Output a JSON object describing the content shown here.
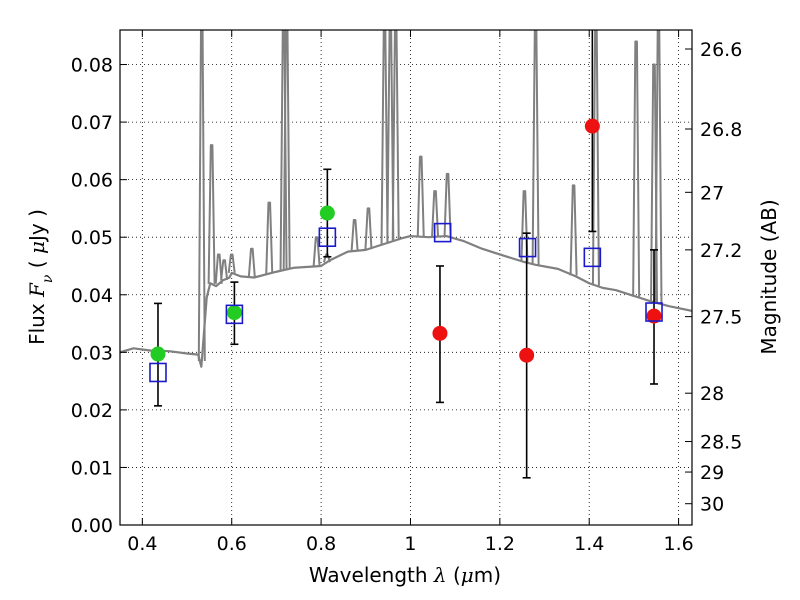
{
  "chart_data": {
    "type": "scatter",
    "xlabel": "Wavelength  λ (μm)",
    "ylabel": "Flux  F_ν  ( μJy )",
    "ylabel_parts": {
      "prefix": "Flux  ",
      "symbol": "F",
      "subscript": "ν",
      "unit_open": "  ( ",
      "unit_mu": "μ",
      "unit_rest": "Jy )"
    },
    "xlabel_parts": {
      "prefix": "Wavelength  ",
      "symbol": "λ",
      "unit_open": " (",
      "unit_mu": "μ",
      "unit_rest": "m)"
    },
    "y2label": "Magnitude (AB)",
    "xlim": [
      0.35,
      1.63
    ],
    "ylim": [
      0.0,
      0.086
    ],
    "grid": true,
    "x_ticks": [
      {
        "value": 0.4,
        "label": "0.4"
      },
      {
        "value": 0.6,
        "label": "0.6"
      },
      {
        "value": 0.8,
        "label": "0.8"
      },
      {
        "value": 1.0,
        "label": "1"
      },
      {
        "value": 1.2,
        "label": "1.2"
      },
      {
        "value": 1.4,
        "label": "1.4"
      },
      {
        "value": 1.6,
        "label": "1.6"
      }
    ],
    "y_ticks": [
      {
        "value": 0.0,
        "label": "0.00"
      },
      {
        "value": 0.01,
        "label": "0.01"
      },
      {
        "value": 0.02,
        "label": "0.02"
      },
      {
        "value": 0.03,
        "label": "0.03"
      },
      {
        "value": 0.04,
        "label": "0.04"
      },
      {
        "value": 0.05,
        "label": "0.05"
      },
      {
        "value": 0.06,
        "label": "0.06"
      },
      {
        "value": 0.07,
        "label": "0.07"
      },
      {
        "value": 0.08,
        "label": "0.08"
      }
    ],
    "y2_ticks": [
      {
        "flux": 0.0827,
        "label": "26.6"
      },
      {
        "flux": 0.0688,
        "label": "26.8"
      },
      {
        "flux": 0.0578,
        "label": "27"
      },
      {
        "flux": 0.0478,
        "label": "27.2"
      },
      {
        "flux": 0.0362,
        "label": "27.5"
      },
      {
        "flux": 0.0229,
        "label": "28"
      },
      {
        "flux": 0.0145,
        "label": "28.5"
      },
      {
        "flux": 0.0092,
        "label": "29"
      },
      {
        "flux": 0.0037,
        "label": "30"
      }
    ],
    "model_spectrum": {
      "color": "#808080",
      "points": [
        [
          0.35,
          0.03
        ],
        [
          0.38,
          0.0307
        ],
        [
          0.42,
          0.0303
        ],
        [
          0.46,
          0.0302
        ],
        [
          0.5,
          0.0298
        ],
        [
          0.525,
          0.0296
        ],
        [
          0.532,
          0.0275
        ],
        [
          0.538,
          0.0335
        ],
        [
          0.544,
          0.0395
        ],
        [
          0.552,
          0.042
        ],
        [
          0.565,
          0.0415
        ],
        [
          0.58,
          0.0425
        ],
        [
          0.595,
          0.043
        ],
        [
          0.6,
          0.0438
        ],
        [
          0.62,
          0.0432
        ],
        [
          0.65,
          0.043
        ],
        [
          0.7,
          0.044
        ],
        [
          0.74,
          0.0447
        ],
        [
          0.8,
          0.045
        ],
        [
          0.82,
          0.046
        ],
        [
          0.86,
          0.0475
        ],
        [
          0.9,
          0.0478
        ],
        [
          0.94,
          0.0488
        ],
        [
          0.98,
          0.0498
        ],
        [
          1.0,
          0.0502
        ],
        [
          1.04,
          0.05
        ],
        [
          1.08,
          0.0502
        ],
        [
          1.12,
          0.0493
        ],
        [
          1.16,
          0.048
        ],
        [
          1.2,
          0.047
        ],
        [
          1.25,
          0.0458
        ],
        [
          1.28,
          0.0452
        ],
        [
          1.33,
          0.0445
        ],
        [
          1.37,
          0.0432
        ],
        [
          1.4,
          0.042
        ],
        [
          1.43,
          0.0412
        ],
        [
          1.46,
          0.0408
        ],
        [
          1.5,
          0.0398
        ],
        [
          1.54,
          0.0388
        ],
        [
          1.58,
          0.038
        ],
        [
          1.63,
          0.0372
        ]
      ],
      "lines": [
        [
          0.533,
          0.086
        ],
        [
          0.555,
          0.066
        ],
        [
          0.571,
          0.047
        ],
        [
          0.583,
          0.046
        ],
        [
          0.6,
          0.047
        ],
        [
          0.645,
          0.048
        ],
        [
          0.684,
          0.056
        ],
        [
          0.716,
          0.086
        ],
        [
          0.723,
          0.086
        ],
        [
          0.79,
          0.05
        ],
        [
          0.813,
          0.047
        ],
        [
          0.875,
          0.053
        ],
        [
          0.906,
          0.055
        ],
        [
          0.942,
          0.086
        ],
        [
          0.955,
          0.086
        ],
        [
          0.967,
          0.086
        ],
        [
          1.023,
          0.064
        ],
        [
          1.055,
          0.058
        ],
        [
          1.083,
          0.061
        ],
        [
          1.255,
          0.058
        ],
        [
          1.28,
          0.086
        ],
        [
          1.365,
          0.059
        ],
        [
          1.415,
          0.086
        ],
        [
          1.505,
          0.084
        ],
        [
          1.545,
          0.08
        ],
        [
          1.555,
          0.086
        ]
      ]
    },
    "error_bars": [
      {
        "x": 0.435,
        "low": 0.0207,
        "high": 0.0385
      },
      {
        "x": 0.606,
        "low": 0.0314,
        "high": 0.0422
      },
      {
        "x": 0.814,
        "low": 0.0466,
        "high": 0.0618
      },
      {
        "x": 1.066,
        "low": 0.0213,
        "high": 0.045
      },
      {
        "x": 1.26,
        "low": 0.0082,
        "high": 0.0507
      },
      {
        "x": 1.407,
        "low": 0.051,
        "high": 0.086
      },
      {
        "x": 1.545,
        "low": 0.0245,
        "high": 0.0478
      }
    ],
    "series": [
      {
        "marker": "filled-circle",
        "color": "#22cc22",
        "points": [
          [
            0.435,
            0.0297
          ],
          [
            0.606,
            0.0369
          ],
          [
            0.814,
            0.0542
          ]
        ]
      },
      {
        "marker": "filled-circle",
        "color": "#ee1111",
        "points": [
          [
            1.066,
            0.0333
          ],
          [
            1.26,
            0.0295
          ],
          [
            1.407,
            0.0693
          ],
          [
            1.545,
            0.0363
          ]
        ]
      },
      {
        "marker": "open-square",
        "color": "#1a1acc",
        "points": [
          [
            0.435,
            0.0265
          ],
          [
            0.606,
            0.0366
          ],
          [
            0.814,
            0.05
          ],
          [
            1.072,
            0.0508
          ],
          [
            1.262,
            0.0482
          ],
          [
            1.407,
            0.0465
          ],
          [
            1.545,
            0.037
          ]
        ]
      }
    ]
  }
}
